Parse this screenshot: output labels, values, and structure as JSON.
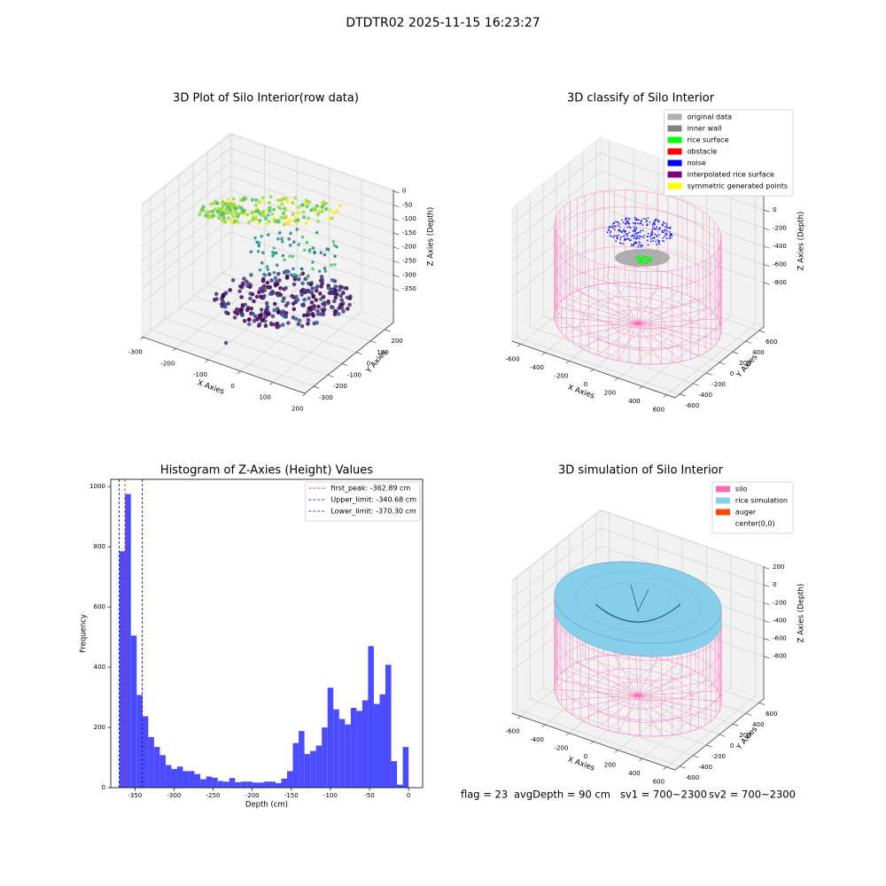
{
  "title": "DTDTR02 2025-11-15 16:23:27",
  "footer": [
    "flag = 23",
    "avgDepth = 90 cm",
    "sv1 = 700~2300",
    "sv2 = 700~2300"
  ],
  "chart_data": [
    {
      "type": "scatter3d",
      "title": "3D Plot of Silo Interior(row data)",
      "xlabel": "X Axies",
      "ylabel": "Y Axies",
      "zlabel": "Z Axies (Depth)",
      "xlim": [
        -305,
        198
      ],
      "ylim": [
        -362,
        262
      ],
      "zlim": [
        -470,
        5
      ],
      "xticks": [
        -300,
        -200,
        -100,
        0,
        100,
        200
      ],
      "yticks": [
        -300,
        -200,
        -100,
        0,
        100,
        200
      ],
      "zticks": [
        -350,
        -300,
        -250,
        -200,
        -150,
        -100,
        -50,
        0
      ],
      "colormap": "viridis",
      "grid": true
    },
    {
      "type": "scatter3d",
      "title": "3D classify of Silo Interior",
      "xlabel": "X Axies",
      "ylabel": "Y Axies",
      "zlabel": "Z Axies (Depth)",
      "xlim": [
        -670,
        670
      ],
      "ylim": [
        -670,
        670
      ],
      "zlim": [
        -1290,
        175
      ],
      "xticks": [
        -600,
        -400,
        -200,
        0,
        200,
        400,
        600
      ],
      "yticks": [
        -600,
        -400,
        -200,
        0,
        200,
        400,
        600
      ],
      "zticks": [
        -800,
        -600,
        -400,
        -200,
        0
      ],
      "grid": true,
      "legend": "upper right",
      "legend_entries": [
        {
          "name": "original data",
          "color": "#b0b0b0"
        },
        {
          "name": "inner wall",
          "color": "#808080"
        },
        {
          "name": "rice surface",
          "color": "#00ff00"
        },
        {
          "name": "obstacle",
          "color": "#ff0000"
        },
        {
          "name": "noise",
          "color": "#0000ff"
        },
        {
          "name": "interpolated rice surface",
          "color": "#800080"
        },
        {
          "name": "symmetric generated points",
          "color": "#ffff00"
        }
      ]
    },
    {
      "type": "histogram",
      "title": "Histogram of Z-Axies (Height) Values",
      "xlabel": "Depth (cm)",
      "ylabel": "Frequency",
      "xlim": [
        -381,
        18
      ],
      "ylim": [
        0,
        1024
      ],
      "xticks": [
        -350,
        -300,
        -250,
        -200,
        -150,
        -100,
        -50,
        0
      ],
      "yticks": [
        0,
        200,
        400,
        600,
        800,
        1000
      ],
      "color": "#4c4cff",
      "bins": [
        -370,
        -362.6,
        -355.2,
        -347.8,
        -340.4,
        -333,
        -325.6,
        -318.2,
        -310.8,
        -303.4,
        -296,
        -288.6,
        -281.2,
        -273.8,
        -266.4,
        -259,
        -251.6,
        -244.2,
        -236.8,
        -229.4,
        -222,
        -214.6,
        -207.2,
        -199.8,
        -192.4,
        -185,
        -177.6,
        -170.2,
        -162.8,
        -155.4,
        -148,
        -140.6,
        -133.2,
        -125.8,
        -118.4,
        -111,
        -103.6,
        -96.2,
        -88.8,
        -81.4,
        -74,
        -66.6,
        -59.2,
        -51.8,
        -44.4,
        -37,
        -29.6,
        -22.2,
        -14.8,
        -7.4,
        0
      ],
      "values": [
        785,
        975,
        505,
        308,
        237,
        168,
        135,
        108,
        75,
        62,
        70,
        55,
        55,
        45,
        28,
        37,
        33,
        22,
        20,
        32,
        18,
        20,
        20,
        17,
        17,
        20,
        20,
        15,
        30,
        55,
        148,
        188,
        112,
        122,
        140,
        200,
        332,
        260,
        228,
        210,
        265,
        255,
        290,
        470,
        278,
        310,
        408,
        88,
        10,
        135
      ],
      "vlines": [
        {
          "name": "first_peak: -362.89 cm",
          "value": -362.89,
          "color": "#ff0000"
        },
        {
          "name": "Upper_limit: -340.68 cm",
          "value": -340.68,
          "color": "#0000cc"
        },
        {
          "name": "Lower_limit: -370.30 cm",
          "value": -370.3,
          "color": "#0000cc"
        }
      ],
      "legend": "upper right"
    },
    {
      "type": "surface3d",
      "title": "3D simulation of Silo Interior",
      "xlabel": "X Axies",
      "ylabel": "Y Axies",
      "zlabel": "Z Axies (Depth)",
      "xlim": [
        -670,
        670
      ],
      "ylim": [
        -670,
        670
      ],
      "zlim": [
        -1280,
        210
      ],
      "xticks": [
        -600,
        -400,
        -200,
        0,
        200,
        400,
        600
      ],
      "yticks": [
        -600,
        -400,
        -200,
        0,
        200,
        400,
        600
      ],
      "zticks": [
        -800,
        -600,
        -400,
        -200,
        0,
        200
      ],
      "grid": true,
      "legend": "upper right",
      "legend_entries": [
        {
          "name": "silo",
          "color": "#ff69b4"
        },
        {
          "name": "rice simulation",
          "color": "#87ceeb"
        },
        {
          "name": "auger",
          "color": "#ff4500"
        },
        {
          "name": "center(0,0)",
          "color": "#ffffff"
        }
      ]
    }
  ]
}
